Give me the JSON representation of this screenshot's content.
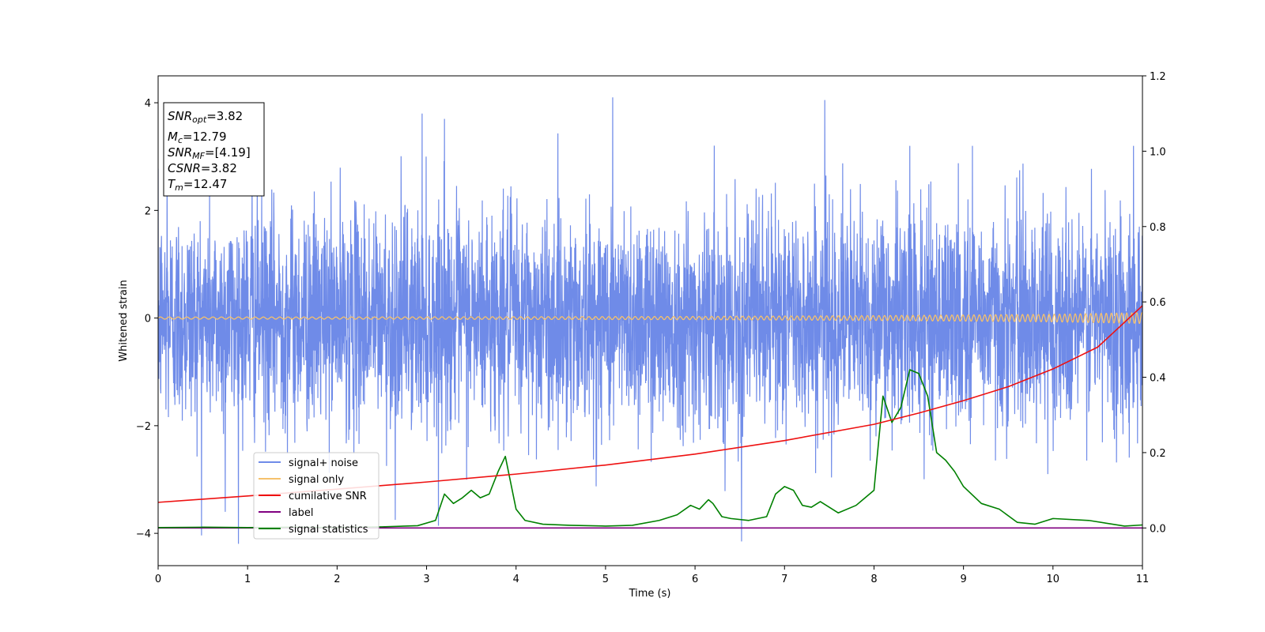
{
  "chart_data": {
    "type": "line",
    "xlabel": "Time (s)",
    "ylabel": "Whitened strain",
    "xlim": [
      0,
      11
    ],
    "ylim": [
      -4.6,
      4.5
    ],
    "y2lim": [
      -0.1,
      1.2
    ],
    "x_ticks": [
      0,
      1,
      2,
      3,
      4,
      5,
      6,
      7,
      8,
      9,
      10,
      11
    ],
    "y_ticks": [
      -4,
      -2,
      0,
      2,
      4
    ],
    "y2_ticks": [
      0.0,
      0.2,
      0.4,
      0.6,
      0.8,
      1.0,
      1.2
    ],
    "y2_tick_labels": [
      "0.0",
      "0.2",
      "0.4",
      "0.6",
      "0.8",
      "1.0",
      "1.2"
    ],
    "grid": false,
    "legend_position": "lower-left",
    "legend": [
      {
        "name": "signal+ noise",
        "color": "#6f8be8"
      },
      {
        "name": "signal only",
        "color": "#f5c16c"
      },
      {
        "name": "cumilative SNR",
        "color": "#ee1111"
      },
      {
        "name": "label",
        "color": "#800080"
      },
      {
        "name": "signal statistics",
        "color": "#008000"
      }
    ],
    "annotation": {
      "lines": [
        {
          "main": "SNR",
          "sub": "opt",
          "rest": "=3.82"
        },
        {
          "main": "M",
          "sub": "c",
          "rest": "=12.79"
        },
        {
          "main": "SNR",
          "sub": "MF",
          "rest": "=[4.19]"
        },
        {
          "main": "CSNR",
          "sub": "",
          "rest": "=3.82"
        },
        {
          "main": "T",
          "sub": "m",
          "rest": "=12.47"
        }
      ]
    },
    "series": [
      {
        "name": "signal+ noise",
        "axis": "left",
        "color": "#6f8be8",
        "description": "whitened strain noise, approx amplitude ~1, peaks to ~4.1",
        "sample_rate_hz": 400,
        "std": 1.0,
        "peak_values": [
          [
            0.1,
            2.9
          ],
          [
            1.05,
            3.0
          ],
          [
            2.95,
            3.8
          ],
          [
            3.2,
            3.7
          ],
          [
            5.08,
            4.1
          ],
          [
            7.45,
            4.05
          ],
          [
            6.52,
            -4.15
          ],
          [
            2.65,
            -3.75
          ],
          [
            0.75,
            -3.6
          ],
          [
            8.4,
            3.2
          ],
          [
            9.1,
            3.2
          ],
          [
            10.9,
            3.2
          ]
        ]
      },
      {
        "name": "signal only",
        "axis": "left",
        "color": "#f5c16c",
        "description": "chirp with growing amplitude",
        "x": [
          0,
          2,
          4,
          6,
          8,
          10,
          11
        ],
        "amplitude": [
          0.02,
          0.02,
          0.025,
          0.03,
          0.045,
          0.07,
          0.1
        ]
      },
      {
        "name": "cumilative SNR",
        "axis": "right",
        "color": "#ee1111",
        "x": [
          0,
          1,
          2,
          3,
          4,
          5,
          6,
          7,
          8,
          8.5,
          9,
          9.5,
          10,
          10.5,
          11
        ],
        "y": [
          0.068,
          0.085,
          0.103,
          0.122,
          0.143,
          0.167,
          0.196,
          0.232,
          0.275,
          0.305,
          0.338,
          0.375,
          0.422,
          0.48,
          0.59
        ]
      },
      {
        "name": "label",
        "axis": "right",
        "color": "#800080",
        "x": [
          0,
          11
        ],
        "y": [
          0.0,
          0.0
        ]
      },
      {
        "name": "signal statistics",
        "axis": "right",
        "color": "#008000",
        "x": [
          0,
          0.5,
          1,
          1.5,
          2,
          2.5,
          2.9,
          3.1,
          3.2,
          3.3,
          3.4,
          3.5,
          3.6,
          3.7,
          3.8,
          3.88,
          4.0,
          4.1,
          4.3,
          4.6,
          5.0,
          5.3,
          5.6,
          5.8,
          5.95,
          6.05,
          6.15,
          6.2,
          6.3,
          6.4,
          6.6,
          6.8,
          6.9,
          7.0,
          7.1,
          7.2,
          7.3,
          7.4,
          7.6,
          7.8,
          8.0,
          8.1,
          8.2,
          8.3,
          8.4,
          8.5,
          8.6,
          8.7,
          8.8,
          8.9,
          9.0,
          9.2,
          9.4,
          9.6,
          9.8,
          10.0,
          10.4,
          10.8,
          11.0
        ],
        "y": [
          0.001,
          0.002,
          0.001,
          0.002,
          0.001,
          0.003,
          0.006,
          0.02,
          0.09,
          0.065,
          0.08,
          0.1,
          0.08,
          0.09,
          0.15,
          0.19,
          0.05,
          0.02,
          0.01,
          0.007,
          0.005,
          0.007,
          0.02,
          0.035,
          0.06,
          0.05,
          0.075,
          0.065,
          0.03,
          0.025,
          0.02,
          0.03,
          0.09,
          0.11,
          0.1,
          0.06,
          0.055,
          0.07,
          0.04,
          0.06,
          0.1,
          0.35,
          0.28,
          0.32,
          0.42,
          0.41,
          0.35,
          0.2,
          0.18,
          0.15,
          0.11,
          0.065,
          0.05,
          0.015,
          0.01,
          0.025,
          0.02,
          0.005,
          0.008
        ]
      }
    ]
  }
}
